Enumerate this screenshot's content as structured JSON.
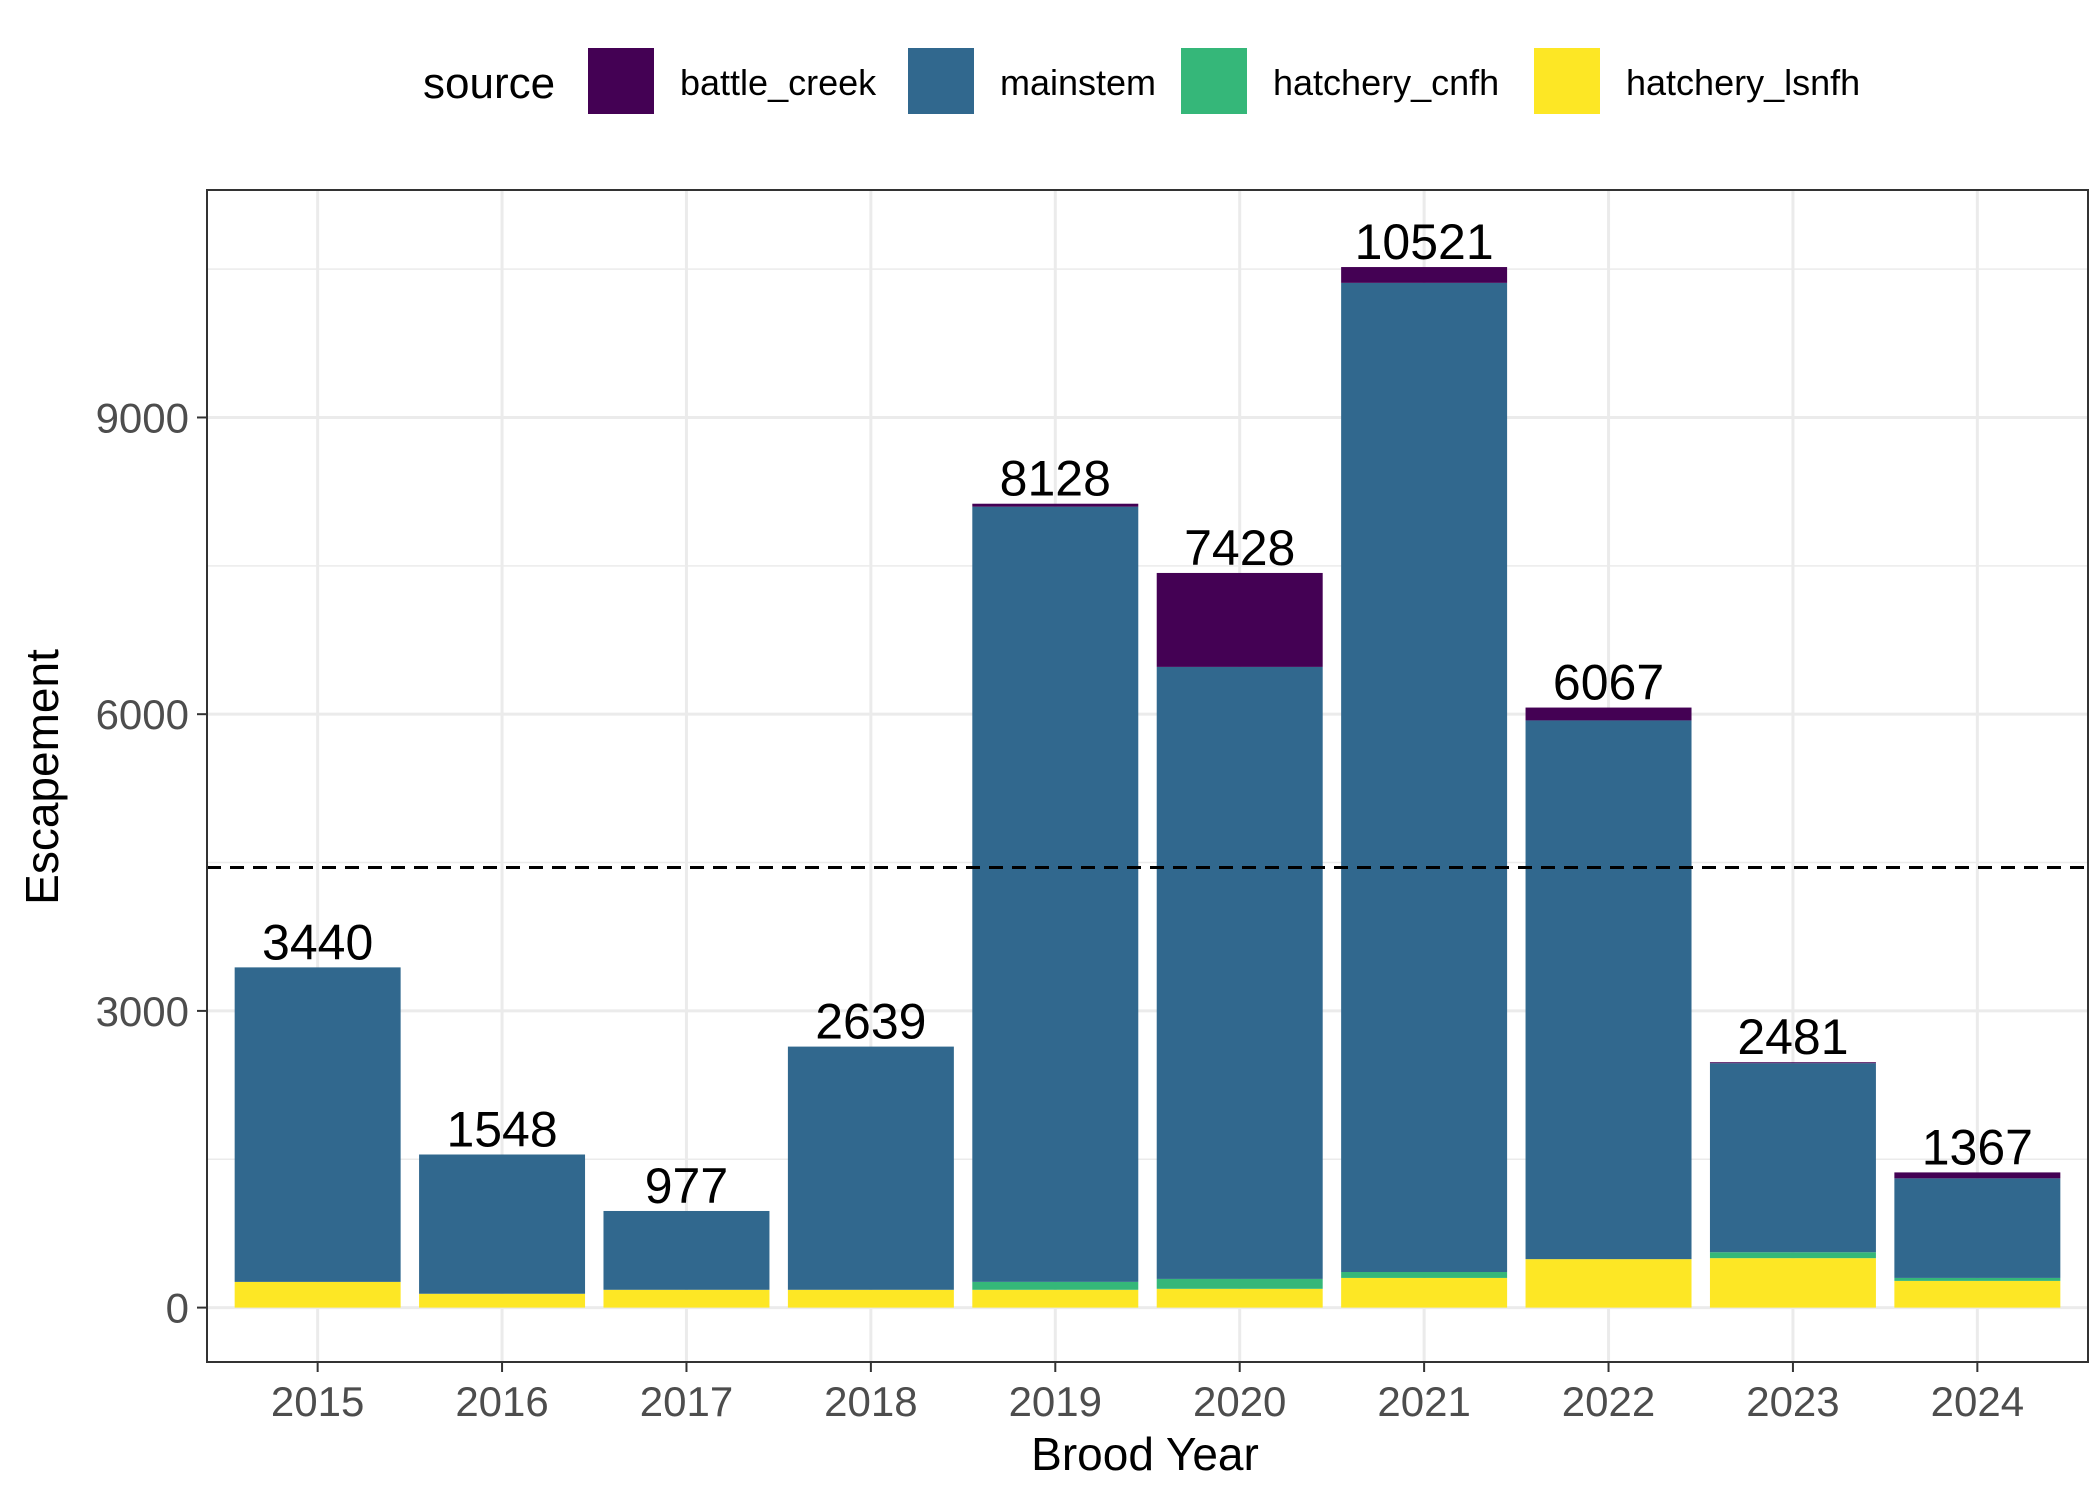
{
  "chart_data": {
    "type": "bar",
    "stacked": true,
    "title": "",
    "xlabel": "Brood Year",
    "ylabel": "Escapement",
    "ylim": [
      -550,
      11300
    ],
    "yticks": [
      0,
      3000,
      6000,
      9000
    ],
    "grid": true,
    "legend": {
      "title": "source",
      "position": "top",
      "entries": [
        "battle_creek",
        "mainstem",
        "hatchery_cnfh",
        "hatchery_lsnfh"
      ]
    },
    "categories": [
      "2015",
      "2016",
      "2017",
      "2018",
      "2019",
      "2020",
      "2021",
      "2022",
      "2023",
      "2024"
    ],
    "series": [
      {
        "name": "hatchery_lsnfh",
        "color": "#FDE725",
        "values": [
          260,
          140,
          180,
          180,
          180,
          190,
          300,
          490,
          500,
          270
        ]
      },
      {
        "name": "hatchery_cnfh",
        "color": "#35B779",
        "values": [
          0,
          0,
          0,
          0,
          80,
          100,
          60,
          0,
          60,
          30
        ]
      },
      {
        "name": "mainstem",
        "color": "#31688E",
        "values": [
          3180,
          1408,
          797,
          2459,
          7838,
          6188,
          10001,
          5447,
          1911,
          1007
        ]
      },
      {
        "name": "battle_creek",
        "color": "#440154",
        "values": [
          0,
          0,
          0,
          0,
          30,
          950,
          160,
          130,
          10,
          60
        ]
      }
    ],
    "totals": [
      3440,
      1548,
      977,
      2639,
      8128,
      7428,
      10521,
      6067,
      2481,
      1367
    ],
    "reference_line": {
      "y": 4450,
      "style": "dashed"
    }
  }
}
